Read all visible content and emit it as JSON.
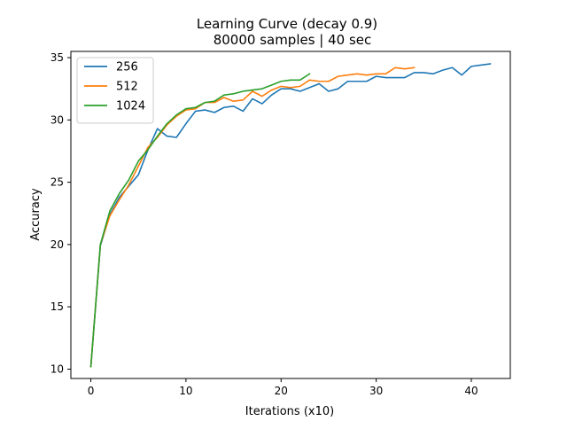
{
  "chart_data": {
    "type": "line",
    "title": "Learning Curve (decay 0.9)",
    "subtitle": "80000 samples | 40 sec",
    "xlabel": "Iterations (x10)",
    "ylabel": "Accuracy",
    "xlim": [
      -2.1,
      44.1
    ],
    "ylim": [
      9.25,
      35.5
    ],
    "xticks": [
      0,
      10,
      20,
      30,
      40
    ],
    "yticks": [
      10,
      15,
      20,
      25,
      30,
      35
    ],
    "grid": false,
    "legend_position": "top-left",
    "series": [
      {
        "name": "256",
        "color": "#1f77b4",
        "values": [
          10.2,
          19.9,
          22.4,
          23.8,
          24.7,
          25.6,
          27.6,
          29.3,
          28.7,
          28.6,
          29.7,
          30.7,
          30.8,
          30.6,
          31.0,
          31.1,
          30.7,
          31.7,
          31.3,
          32.0,
          32.5,
          32.5,
          32.3,
          32.6,
          32.9,
          32.3,
          32.5,
          33.1,
          33.1,
          33.1,
          33.5,
          33.4,
          33.4,
          33.4,
          33.8,
          33.8,
          33.7,
          34.0,
          34.2,
          33.6,
          34.3,
          34.4,
          34.5
        ]
      },
      {
        "name": "512",
        "color": "#ff7f0e",
        "values": [
          10.2,
          20.0,
          22.3,
          23.6,
          24.8,
          26.3,
          27.8,
          28.6,
          29.6,
          30.3,
          30.8,
          30.9,
          31.4,
          31.4,
          31.8,
          31.5,
          31.6,
          32.3,
          31.9,
          32.4,
          32.7,
          32.6,
          32.7,
          33.2,
          33.1,
          33.1,
          33.5,
          33.6,
          33.7,
          33.6,
          33.7,
          33.7,
          34.2,
          34.1,
          34.2
        ]
      },
      {
        "name": "1024",
        "color": "#2ca02c",
        "values": [
          10.2,
          20.0,
          22.7,
          24.1,
          25.2,
          26.7,
          27.6,
          28.7,
          29.7,
          30.4,
          30.9,
          31.0,
          31.4,
          31.5,
          32.0,
          32.1,
          32.3,
          32.4,
          32.5,
          32.8,
          33.1,
          33.2,
          33.2,
          33.7
        ]
      }
    ]
  }
}
